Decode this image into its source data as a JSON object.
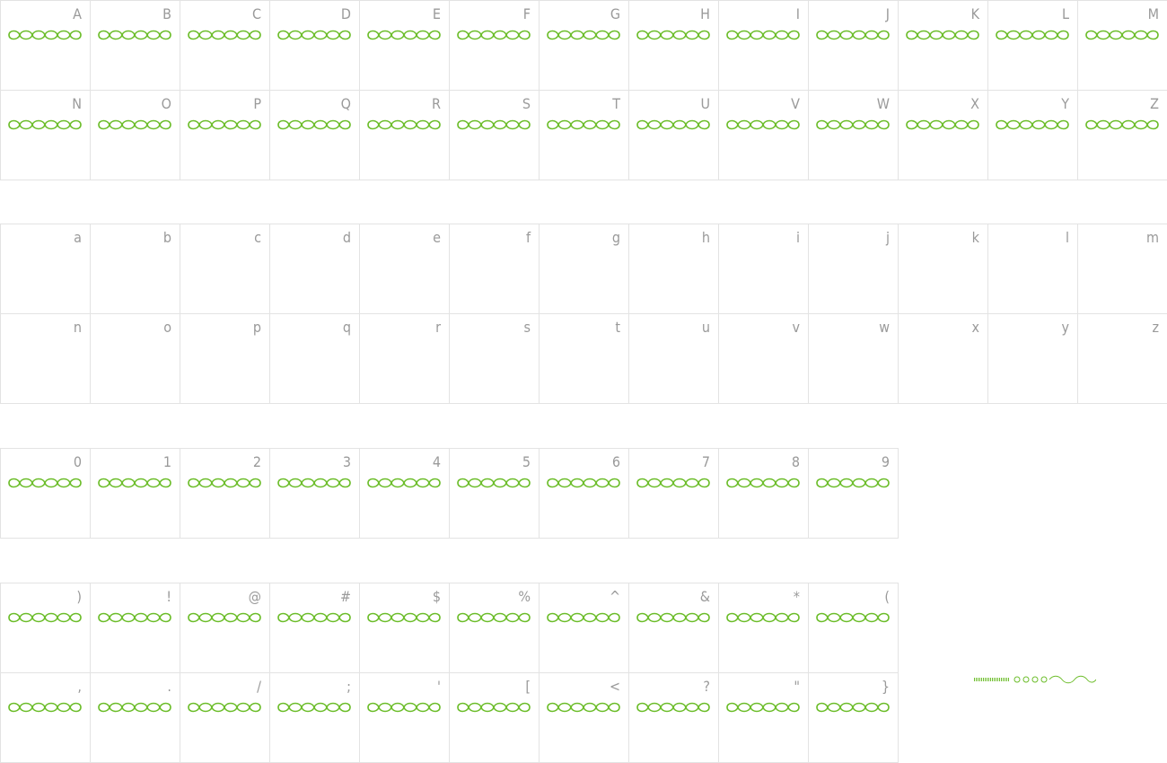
{
  "sections": [
    {
      "rows": [
        [
          "A",
          "B",
          "C",
          "D",
          "E",
          "F",
          "G",
          "H",
          "I",
          "J",
          "K",
          "L",
          "M"
        ],
        [
          "N",
          "O",
          "P",
          "Q",
          "R",
          "S",
          "T",
          "U",
          "V",
          "W",
          "X",
          "Y",
          "Z"
        ]
      ]
    },
    {
      "rows": [
        [
          "a",
          "b",
          "c",
          "d",
          "e",
          "f",
          "g",
          "h",
          "i",
          "j",
          "k",
          "l",
          "m"
        ],
        [
          "n",
          "o",
          "p",
          "q",
          "r",
          "s",
          "t",
          "u",
          "v",
          "w",
          "x",
          "y",
          "z"
        ]
      ]
    },
    {
      "rows": [
        [
          "0",
          "1",
          "2",
          "3",
          "4",
          "5",
          "6",
          "7",
          "8",
          "9"
        ]
      ]
    },
    {
      "rows": [
        [
          ")",
          "!",
          "@",
          "#",
          "$",
          "%",
          "^",
          "&",
          "*",
          "("
        ],
        [
          ",",
          ".",
          "/",
          ";",
          "'",
          "[",
          "<",
          "?",
          "\"",
          "}"
        ]
      ]
    }
  ]
}
